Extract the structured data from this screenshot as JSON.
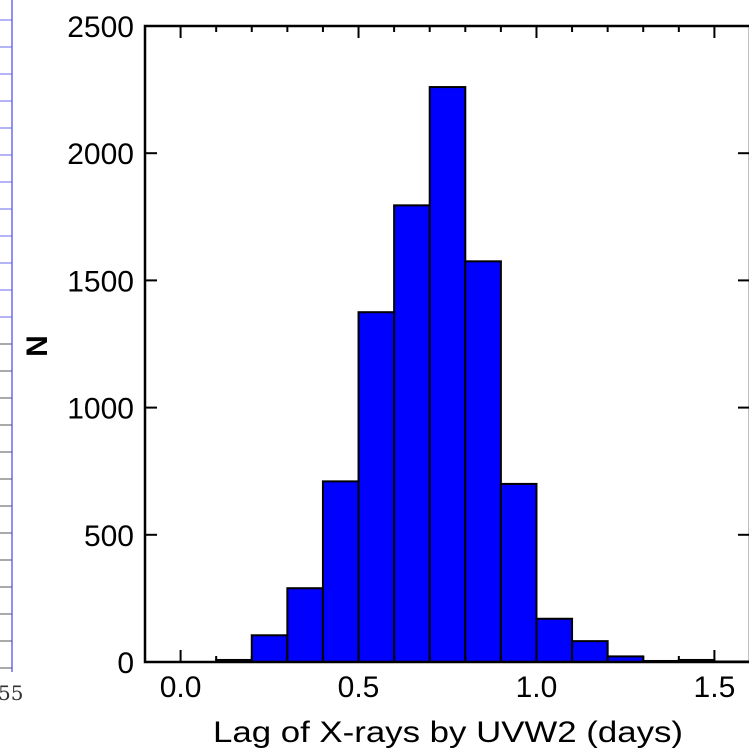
{
  "chart_data": {
    "type": "bar",
    "subtype": "histogram",
    "bin_width": 0.1,
    "bins": [
      {
        "x0": 0.0,
        "x1": 0.1,
        "value": 0
      },
      {
        "x0": 0.1,
        "x1": 0.2,
        "value": 8
      },
      {
        "x0": 0.2,
        "x1": 0.3,
        "value": 105
      },
      {
        "x0": 0.3,
        "x1": 0.4,
        "value": 290
      },
      {
        "x0": 0.4,
        "x1": 0.5,
        "value": 710
      },
      {
        "x0": 0.5,
        "x1": 0.6,
        "value": 1375
      },
      {
        "x0": 0.6,
        "x1": 0.7,
        "value": 1795
      },
      {
        "x0": 0.7,
        "x1": 0.8,
        "value": 2260
      },
      {
        "x0": 0.8,
        "x1": 0.9,
        "value": 1575
      },
      {
        "x0": 0.9,
        "x1": 1.0,
        "value": 700
      },
      {
        "x0": 1.0,
        "x1": 1.1,
        "value": 170
      },
      {
        "x0": 1.1,
        "x1": 1.2,
        "value": 82
      },
      {
        "x0": 1.2,
        "x1": 1.3,
        "value": 22
      },
      {
        "x0": 1.3,
        "x1": 1.4,
        "value": 4
      },
      {
        "x0": 1.4,
        "x1": 1.5,
        "value": 8
      },
      {
        "x0": 1.5,
        "x1": 1.6,
        "value": 2
      }
    ],
    "xlabel": "Lag of X-rays by UVW2 (days)",
    "ylabel": "N",
    "xlim": [
      -0.1,
      1.6
    ],
    "ylim": [
      0,
      2500
    ],
    "xticks": [
      "0.0",
      "0.5",
      "1.0",
      "1.5"
    ],
    "yticks": [
      "0",
      "500",
      "1000",
      "1500",
      "2000",
      "2500"
    ],
    "bar_color": "#0000ff",
    "edge_color": "#000000",
    "grid": false,
    "legend": "none"
  },
  "partial_neighbor_panel": {
    "cut_off_text": "55"
  }
}
